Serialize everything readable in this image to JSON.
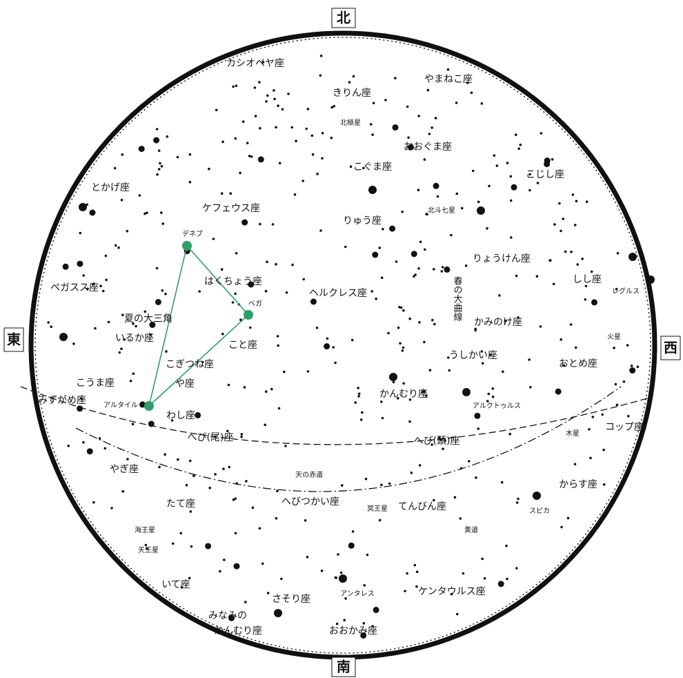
{
  "map": {
    "directions": {
      "north": "北",
      "south": "南",
      "east": "東",
      "west": "西"
    },
    "labels": [
      "カシオペヤ座",
      "きりん座",
      "やまねこ座",
      "北極星",
      "おおぐま座",
      "こぐま座",
      "とかげ座",
      "こじし座",
      "ケフェウス座",
      "りゅう座",
      "北斗七星",
      "デネブ",
      "りょうけん座",
      "ペガスス座",
      "はくちょう座",
      "ベガ",
      "しし座",
      "レグルス",
      "ヘルクレス座",
      "夏の大三角",
      "かみのけ座",
      "いるか座",
      "こと座",
      "火星",
      "こぎつね座",
      "うしかい座",
      "おとめ座",
      "こうま座",
      "や座",
      "かんむり座",
      "みずがめ座",
      "アルタイル",
      "アルクトゥルス",
      "木星",
      "コップ座",
      "わし座",
      "へび(尾)座",
      "へび(頭)座",
      "天の赤道",
      "やぎ座",
      "からす座",
      "へびつかい座",
      "冥王星",
      "てんびん座",
      "たて座",
      "スピカ",
      "海王星",
      "黄道",
      "天王星",
      "いて座",
      "ケンタウルス座",
      "さそり座",
      "アンタレス",
      "みなみの",
      "かんむり座",
      "おおかみ座"
    ],
    "vertical_label": "春の大曲線"
  }
}
